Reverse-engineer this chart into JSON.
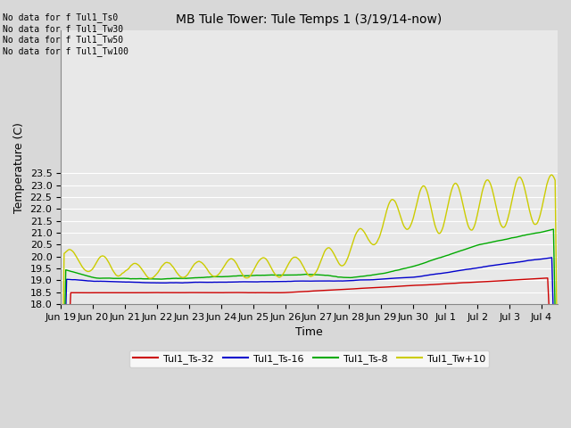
{
  "title": "MB Tule Tower: Tule Temps 1 (3/19/14-now)",
  "xlabel": "Time",
  "ylabel": "Temperature (C)",
  "ylim": [
    18.0,
    29.5
  ],
  "bg_color": "#d8d8d8",
  "plot_bg_color": "#e8e8e8",
  "grid_color": "#ffffff",
  "no_data_lines": [
    "No data for f Tul1_Ts0",
    "No data for f Tul1_Tw30",
    "No data for f Tul1_Tw50",
    "No data for f Tul1_Tw100"
  ],
  "legend_entries": [
    {
      "label": "Tul1_Ts-32",
      "color": "#cc0000"
    },
    {
      "label": "Tul1_Ts-16",
      "color": "#0000cc"
    },
    {
      "label": "Tul1_Ts-8",
      "color": "#00aa00"
    },
    {
      "label": "Tul1_Tw+10",
      "color": "#cccc00"
    }
  ],
  "xtick_labels": [
    "Jun 19",
    "Jun 20",
    "Jun 21",
    "Jun 22",
    "Jun 23",
    "Jun 24",
    "Jun 25",
    "Jun 26",
    "Jun 27",
    "Jun 28",
    "Jun 29",
    "Jun 30",
    "Jul 1",
    "Jul 2",
    "Jul 3",
    "Jul 4"
  ]
}
